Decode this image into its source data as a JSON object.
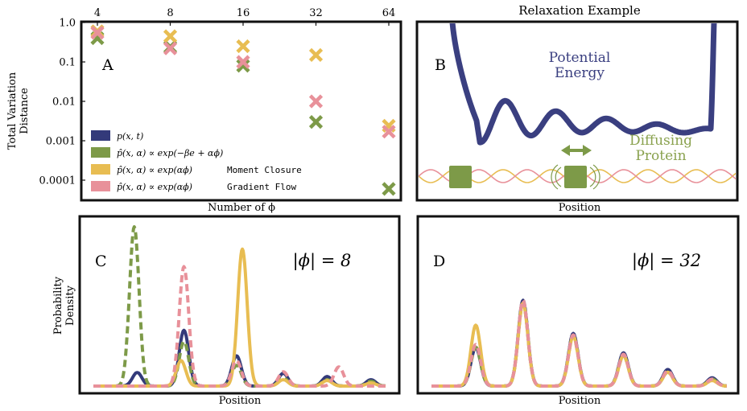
{
  "colors": {
    "navy": "#333a7a",
    "green": "#7d9a48",
    "gold": "#e8bd52",
    "pink": "#e8919a",
    "potential": "#3a3f80",
    "frame": "#111111"
  },
  "panel_a": {
    "letter": "A",
    "ylabel_line1": "Total Variation",
    "ylabel_line2": "Distance",
    "xlabel": "Number of ϕ",
    "legend": [
      {
        "text": "p(x, t)",
        "extra": ""
      },
      {
        "text": "p̂(x, α) ∝ exp(−βe + αϕ)",
        "extra": ""
      },
      {
        "text": "p̂(x, α) ∝ exp(αϕ)",
        "extra": "Moment Closure"
      },
      {
        "text": "p̂(x, α) ∝ exp(αϕ)",
        "extra": "Gradient Flow"
      }
    ]
  },
  "panel_b": {
    "title": "Relaxation Example",
    "letter": "B",
    "potential_label_line1": "Potential",
    "potential_label_line2": "Energy",
    "protein_label_line1": "Diffusing",
    "protein_label_line2": "Protein",
    "xlabel": "Position"
  },
  "panel_c": {
    "letter": "C",
    "phi_label": "|ϕ| = 8",
    "ylabel_line1": "Probability",
    "ylabel_line2": "Density",
    "xlabel": "Position"
  },
  "panel_d": {
    "letter": "D",
    "phi_label": "|ϕ| = 32",
    "xlabel": "Position"
  },
  "chart_data": [
    {
      "type": "scatter",
      "panel": "A",
      "x_scale": "log2",
      "y_scale": "log10",
      "x_ticks": [
        "4",
        "8",
        "16",
        "32",
        "64"
      ],
      "y_ticks": [
        "1.0",
        "0.1",
        "0.01",
        "0.001",
        "0.0001"
      ],
      "ylim": [
        4e-05,
        1.0
      ],
      "xlabel": "Number of ϕ",
      "ylabel": "Total Variation Distance",
      "series": [
        {
          "name": "p̂(x, α) ∝ exp(−βe + αϕ)",
          "color": "green",
          "points": [
            [
              4,
              0.4
            ],
            [
              8,
              0.24
            ],
            [
              16,
              0.08
            ],
            [
              32,
              0.003
            ],
            [
              64,
              6e-05
            ]
          ]
        },
        {
          "name": "p̂(x, α) ∝ exp(αϕ) Moment Closure",
          "color": "gold",
          "points": [
            [
              4,
              0.6
            ],
            [
              8,
              0.45
            ],
            [
              16,
              0.25
            ],
            [
              32,
              0.15
            ],
            [
              64,
              0.0024
            ]
          ]
        },
        {
          "name": "p̂(x, α) ∝ exp(αϕ) Gradient Flow",
          "color": "pink",
          "points": [
            [
              4,
              0.55
            ],
            [
              8,
              0.22
            ],
            [
              16,
              0.1
            ],
            [
              32,
              0.01
            ],
            [
              64,
              0.0017
            ]
          ]
        }
      ]
    },
    {
      "type": "line",
      "panel": "C",
      "xlabel": "Position",
      "ylabel": "Probability Density",
      "x_range": [
        0,
        100
      ],
      "series": [
        {
          "name": "p(x, t)",
          "color": "navy",
          "style": "solid",
          "peaks": [
            [
              15,
              0.085
            ],
            [
              31,
              0.35
            ],
            [
              49,
              0.19
            ],
            [
              65,
              0.08
            ],
            [
              80,
              0.06
            ],
            [
              95,
              0.04
            ]
          ]
        },
        {
          "name": "p̂(x, α) ∝ exp(−βe + αϕ)",
          "color": "green",
          "style": "dashed",
          "peaks": [
            [
              14,
              1.0
            ],
            [
              31,
              0.28
            ],
            [
              49,
              0.13
            ],
            [
              65,
              0.05
            ],
            [
              80,
              0.04
            ],
            [
              95,
              0.03
            ]
          ]
        },
        {
          "name": "p̂(x, α) ∝ exp(αϕ) Moment Closure",
          "color": "gold",
          "style": "solid",
          "peaks": [
            [
              30,
              0.16
            ],
            [
              51,
              0.86
            ],
            [
              65,
              0.04
            ],
            [
              80,
              0.035
            ],
            [
              95,
              0.02
            ]
          ]
        },
        {
          "name": "p̂(x, α) ∝ exp(αϕ) Gradient Flow",
          "color": "pink",
          "style": "dashed",
          "peaks": [
            [
              31,
              0.75
            ],
            [
              49,
              0.16
            ],
            [
              65,
              0.09
            ],
            [
              84,
              0.12
            ]
          ]
        }
      ]
    },
    {
      "type": "line",
      "panel": "D",
      "xlabel": "Position",
      "x_range": [
        0,
        100
      ],
      "series": [
        {
          "name": "p(x, t)",
          "color": "navy",
          "style": "solid",
          "peaks": [
            [
              15,
              0.28
            ],
            [
              31,
              0.62
            ],
            [
              48,
              0.38
            ],
            [
              65,
              0.24
            ],
            [
              80,
              0.12
            ],
            [
              95,
              0.06
            ]
          ]
        },
        {
          "name": "p̂(x, α) ∝ exp(−βe + αϕ)",
          "color": "green",
          "style": "dashed",
          "peaks": [
            [
              15,
              0.28
            ],
            [
              31,
              0.6
            ],
            [
              48,
              0.36
            ],
            [
              65,
              0.22
            ],
            [
              80,
              0.1
            ],
            [
              95,
              0.05
            ]
          ]
        },
        {
          "name": "p̂(x, α) ∝ exp(αϕ) Moment Closure",
          "color": "gold",
          "style": "solid",
          "peaks": [
            [
              15,
              0.44
            ],
            [
              31,
              0.6
            ],
            [
              48,
              0.36
            ],
            [
              65,
              0.22
            ],
            [
              80,
              0.1
            ],
            [
              95,
              0.04
            ]
          ]
        },
        {
          "name": "p̂(x, α) ∝ exp(αϕ) Gradient Flow",
          "color": "pink",
          "style": "dashed",
          "peaks": [
            [
              15,
              0.3
            ],
            [
              31,
              0.62
            ],
            [
              48,
              0.37
            ],
            [
              65,
              0.23
            ],
            [
              80,
              0.11
            ],
            [
              95,
              0.05
            ]
          ]
        }
      ]
    }
  ]
}
